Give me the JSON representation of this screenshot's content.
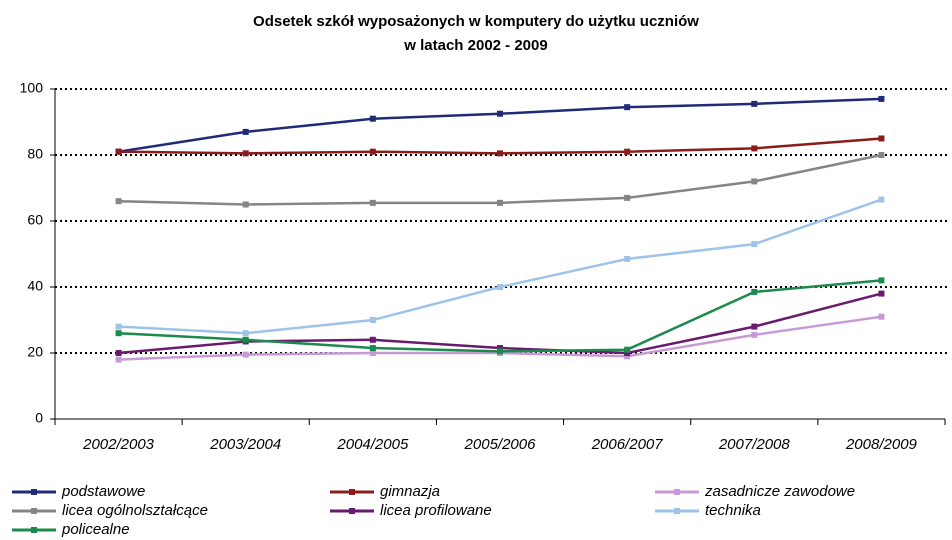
{
  "chart_data": {
    "type": "line",
    "title": [
      "Odsetek szkół wyposażonych w komputery do użytku uczniów",
      "w latach 2002 - 2009"
    ],
    "categories": [
      "2002/2003",
      "2003/2004",
      "2004/2005",
      "2005/2006",
      "2006/2007",
      "2007/2008",
      "2008/2009"
    ],
    "series": [
      {
        "name": "podstawowe",
        "color": "#1f2a78",
        "values": [
          81,
          87,
          91,
          92.5,
          94.5,
          95.5,
          97
        ]
      },
      {
        "name": "gimnazja",
        "color": "#8b1c1c",
        "values": [
          81,
          80.5,
          81,
          80.5,
          81,
          82,
          85
        ]
      },
      {
        "name": "zasadnicze zawodowe",
        "color": "#c79ad6",
        "values": [
          18,
          19.5,
          20,
          20,
          19,
          25.5,
          31
        ]
      },
      {
        "name": "licea ogólnolształcące",
        "color": "#858585",
        "values": [
          66,
          65,
          65.5,
          65.5,
          67,
          72,
          80
        ]
      },
      {
        "name": "licea profilowane",
        "color": "#6a1a6e",
        "values": [
          20,
          23.5,
          24,
          21.5,
          20,
          28,
          38
        ]
      },
      {
        "name": "technika",
        "color": "#9dc3e8",
        "values": [
          28,
          26,
          30,
          40,
          48.5,
          53,
          66.5
        ]
      },
      {
        "name": "policealne",
        "color": "#1b8a4c",
        "values": [
          26,
          24,
          21.5,
          20.5,
          21,
          38.5,
          42
        ]
      }
    ],
    "ylim": [
      0,
      100
    ],
    "yticks": [
      0,
      20,
      40,
      60,
      80,
      100
    ],
    "grid": true
  }
}
